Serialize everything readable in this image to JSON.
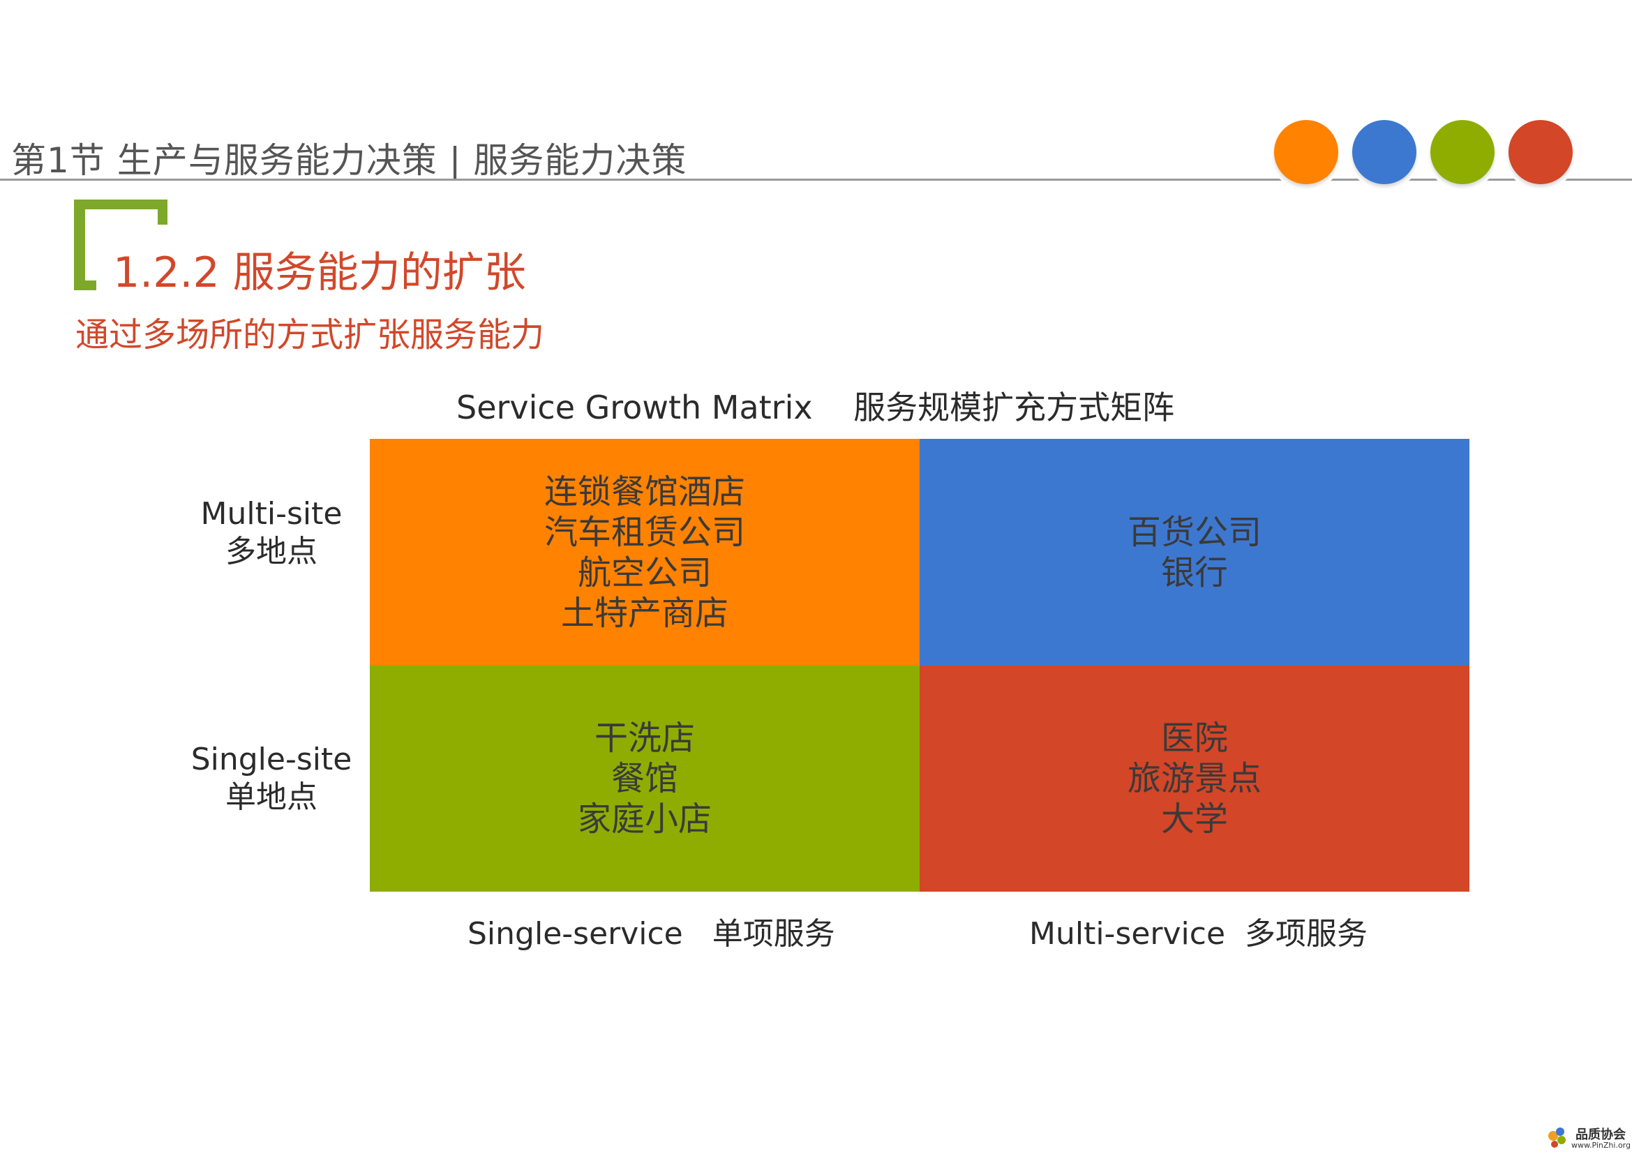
{
  "header": {
    "title": "第1节 生产与服务能力决策 | 服务能力决策"
  },
  "decoration": {
    "dot_colors": [
      "#ff8200",
      "#3d78d0",
      "#8fad00",
      "#d34627"
    ],
    "bracket_color": "#7ea82a"
  },
  "section": {
    "title": "1.2.2 服务能力的扩张",
    "subtitle": "通过多场所的方式扩张服务能力"
  },
  "matrix": {
    "title": "Service Growth Matrix    服务规模扩充方式矩阵",
    "rows": [
      {
        "en": "Multi-site",
        "zh": "多地点"
      },
      {
        "en": "Single-site",
        "zh": "单地点"
      }
    ],
    "columns": [
      "Single-service   单项服务",
      "Multi-service  多项服务"
    ],
    "cells": {
      "multi_site_single_service": {
        "color": "#ff8200",
        "items": [
          "连锁餐馆酒店",
          "汽车租赁公司",
          "航空公司",
          "土特产商店"
        ]
      },
      "multi_site_multi_service": {
        "color": "#3d78d0",
        "items": [
          "百货公司",
          "银行"
        ]
      },
      "single_site_single_service": {
        "color": "#8fad00",
        "items": [
          "干洗店",
          "餐馆",
          "家庭小店"
        ]
      },
      "single_site_multi_service": {
        "color": "#d34627",
        "items": [
          "医院",
          "旅游景点",
          "大学"
        ]
      }
    }
  },
  "watermark": {
    "name": "品质协会",
    "url": "www.PinZhi.org"
  }
}
